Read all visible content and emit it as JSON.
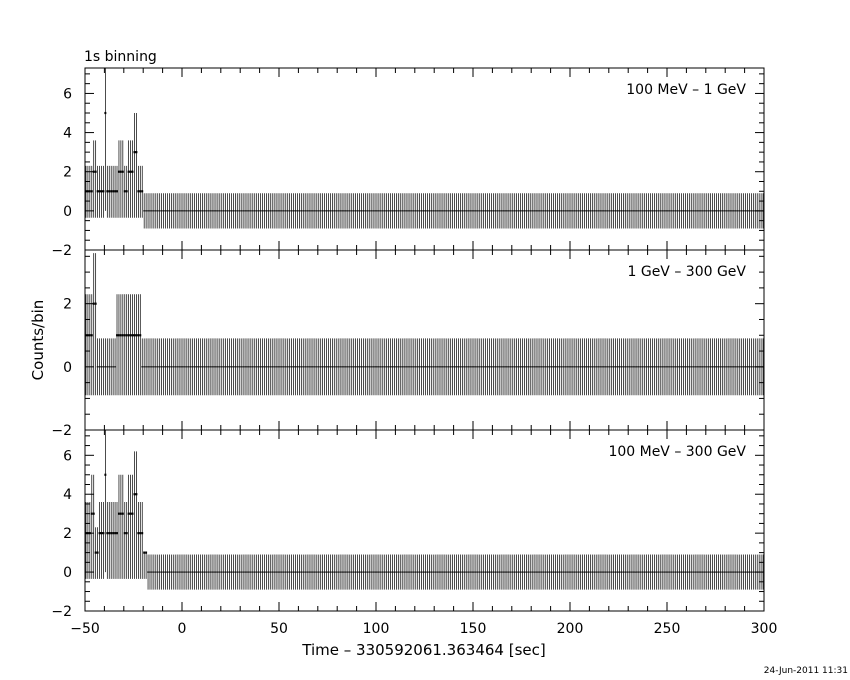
{
  "header": {
    "title": "1s binning",
    "date_stamp": "24-Jun-2011 11:31"
  },
  "chart_data": [
    {
      "type": "line",
      "step": true,
      "error_bars": true,
      "panel_label": "100 MeV – 1 GeV",
      "xlim": [
        -50,
        300
      ],
      "ylim": [
        -2,
        7.3
      ],
      "yticks": [
        -2,
        0,
        2,
        4,
        6
      ],
      "ytick_labels": [
        "−2",
        "0",
        "2",
        "4",
        "6"
      ],
      "baseline_error": [
        -0.9,
        0.9
      ],
      "segments": [
        {
          "x": [
            -50,
            -46
          ],
          "y": 1,
          "lo": -0.35,
          "hi": 2.3
        },
        {
          "x": [
            -46,
            -44
          ],
          "y": 2,
          "lo": -0.35,
          "hi": 3.6
        },
        {
          "x": [
            -44,
            -40
          ],
          "y": 1,
          "lo": -0.35,
          "hi": 2.3
        },
        {
          "x": [
            -40,
            -39
          ],
          "y": 5,
          "lo": 0.0,
          "hi": 7.3
        },
        {
          "x": [
            -39,
            -33
          ],
          "y": 1,
          "lo": -0.35,
          "hi": 2.3
        },
        {
          "x": [
            -33,
            -30
          ],
          "y": 2,
          "lo": -0.35,
          "hi": 3.6
        },
        {
          "x": [
            -30,
            -28
          ],
          "y": 1,
          "lo": -0.35,
          "hi": 2.3
        },
        {
          "x": [
            -28,
            -25
          ],
          "y": 2,
          "lo": -0.35,
          "hi": 3.6
        },
        {
          "x": [
            -25,
            -23
          ],
          "y": 3,
          "lo": -0.35,
          "hi": 5.0
        },
        {
          "x": [
            -23,
            -20
          ],
          "y": 1,
          "lo": -0.35,
          "hi": 2.3
        },
        {
          "x": [
            -20,
            -18
          ],
          "y": 0,
          "lo": -0.9,
          "hi": 0.9
        }
      ]
    },
    {
      "type": "line",
      "step": true,
      "error_bars": true,
      "panel_label": "1 GeV – 300 GeV",
      "xlim": [
        -50,
        300
      ],
      "ylim": [
        -2,
        3.7
      ],
      "yticks": [
        -2,
        0,
        2
      ],
      "ytick_labels": [
        "−2",
        "0",
        "2"
      ],
      "baseline_error": [
        -0.9,
        0.9
      ],
      "segments": [
        {
          "x": [
            -50,
            -46
          ],
          "y": 1,
          "lo": -0.9,
          "hi": 2.3
        },
        {
          "x": [
            -46,
            -44
          ],
          "y": 2,
          "lo": -0.9,
          "hi": 3.6
        },
        {
          "x": [
            -44,
            -34
          ],
          "y": 0,
          "lo": -0.9,
          "hi": 0.9
        },
        {
          "x": [
            -34,
            -31
          ],
          "y": 1,
          "lo": -0.9,
          "hi": 2.3
        },
        {
          "x": [
            -31,
            -26
          ],
          "y": 1,
          "lo": -0.9,
          "hi": 2.3
        },
        {
          "x": [
            -26,
            -21
          ],
          "y": 1,
          "lo": -0.9,
          "hi": 2.3
        }
      ]
    },
    {
      "type": "line",
      "step": true,
      "error_bars": true,
      "panel_label": "100 MeV – 300 GeV",
      "xlim": [
        -50,
        300
      ],
      "ylim": [
        -2,
        7.3
      ],
      "yticks": [
        -2,
        0,
        2,
        4,
        6
      ],
      "ytick_labels": [
        "−2",
        "0",
        "2",
        "4",
        "6"
      ],
      "baseline_error": [
        -0.9,
        0.9
      ],
      "segments": [
        {
          "x": [
            -50,
            -47
          ],
          "y": 2,
          "lo": -0.35,
          "hi": 3.6
        },
        {
          "x": [
            -47,
            -45
          ],
          "y": 3,
          "lo": -0.35,
          "hi": 5.0
        },
        {
          "x": [
            -45,
            -43
          ],
          "y": 1,
          "lo": -0.35,
          "hi": 2.3
        },
        {
          "x": [
            -43,
            -40
          ],
          "y": 2,
          "lo": -0.35,
          "hi": 3.6
        },
        {
          "x": [
            -40,
            -39
          ],
          "y": 5,
          "lo": 0.0,
          "hi": 7.3
        },
        {
          "x": [
            -39,
            -33
          ],
          "y": 2,
          "lo": -0.35,
          "hi": 3.6
        },
        {
          "x": [
            -33,
            -30
          ],
          "y": 3,
          "lo": -0.35,
          "hi": 5.0
        },
        {
          "x": [
            -30,
            -28
          ],
          "y": 2,
          "lo": -0.35,
          "hi": 3.6
        },
        {
          "x": [
            -28,
            -25
          ],
          "y": 3,
          "lo": -0.35,
          "hi": 5.0
        },
        {
          "x": [
            -25,
            -23
          ],
          "y": 4,
          "lo": -0.35,
          "hi": 6.2
        },
        {
          "x": [
            -23,
            -20
          ],
          "y": 2,
          "lo": -0.35,
          "hi": 3.6
        },
        {
          "x": [
            -20,
            -18
          ],
          "y": 1,
          "lo": -0.35,
          "hi": 1.0
        }
      ]
    }
  ],
  "axes": {
    "ylabel": "Counts/bin",
    "xlabel": "Time – 330592061.363464 [sec]",
    "xticks": [
      -50,
      0,
      50,
      100,
      150,
      200,
      250,
      300
    ],
    "xtick_labels": [
      "−50",
      "0",
      "50",
      "100",
      "150",
      "200",
      "250",
      "300"
    ],
    "bin_width": 1
  }
}
